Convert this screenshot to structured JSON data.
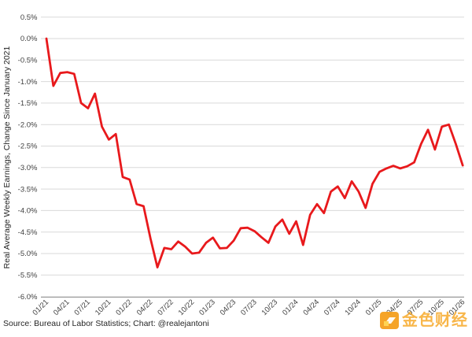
{
  "chart_data": {
    "type": "line",
    "title": "",
    "xlabel": "",
    "ylabel": "Real Average Weekly Earnings, Change Since January 2021",
    "ylim": [
      -6.0,
      0.5
    ],
    "y_tick_step": 0.5,
    "grid": "horizontal",
    "legend_position": "none",
    "y_tick_labels": [
      "0.5%",
      "0.0%",
      "-0.5%",
      "-1.0%",
      "-1.5%",
      "-2.0%",
      "-2.5%",
      "-3.0%",
      "-3.5%",
      "-4.0%",
      "-4.5%",
      "-5.0%",
      "-5.5%",
      "-6.0%"
    ],
    "x_tick_labels": [
      "01/21",
      "04/21",
      "07/21",
      "10/21",
      "01/22",
      "04/22",
      "07/22",
      "10/22",
      "01/23",
      "04/23",
      "07/23",
      "10/23",
      "01/24",
      "04/24",
      "07/24",
      "10/24",
      "01/25",
      "04/25",
      "07/25",
      "10/25",
      "01/26"
    ],
    "x_tick_rotation_deg": -45,
    "series": [
      {
        "name": "Real Average Weekly Earnings, % change since January 2021",
        "color": "#e8191c",
        "x": [
          "01/21",
          "02/21",
          "03/21",
          "04/21",
          "05/21",
          "06/21",
          "07/21",
          "08/21",
          "09/21",
          "10/21",
          "11/21",
          "12/21",
          "01/22",
          "02/22",
          "03/22",
          "04/22",
          "05/22",
          "06/22",
          "07/22",
          "08/22",
          "09/22",
          "10/22",
          "11/22",
          "12/22",
          "01/23",
          "02/23",
          "03/23",
          "04/23",
          "05/23",
          "06/23",
          "07/23",
          "08/23",
          "09/23",
          "10/23",
          "11/23",
          "12/23",
          "01/24",
          "02/24",
          "03/24",
          "04/24",
          "05/24",
          "06/24",
          "07/24",
          "08/24",
          "09/24",
          "10/24",
          "11/24",
          "12/24",
          "01/25",
          "02/25",
          "03/25",
          "04/25",
          "05/25",
          "06/25",
          "07/25",
          "08/25",
          "09/25",
          "10/25",
          "11/25",
          "12/25",
          "01/26"
        ],
        "values": [
          0.0,
          -1.1,
          -0.8,
          -0.78,
          -0.82,
          -1.5,
          -1.62,
          -1.28,
          -2.05,
          -2.35,
          -2.22,
          -3.22,
          -3.28,
          -3.85,
          -3.9,
          -4.65,
          -5.32,
          -4.87,
          -4.9,
          -4.72,
          -4.84,
          -5.0,
          -4.98,
          -4.75,
          -4.63,
          -4.88,
          -4.87,
          -4.7,
          -4.41,
          -4.4,
          -4.48,
          -4.62,
          -4.75,
          -4.37,
          -4.21,
          -4.54,
          -4.25,
          -4.8,
          -4.1,
          -3.85,
          -4.06,
          -3.56,
          -3.44,
          -3.71,
          -3.32,
          -3.56,
          -3.94,
          -3.38,
          -3.1,
          -3.02,
          -2.96,
          -3.02,
          -2.97,
          -2.88,
          -2.45,
          -2.12,
          -2.58,
          -2.05,
          -2.0,
          -2.45,
          -2.95
        ]
      }
    ]
  },
  "source_note": "Source: Bureau of Labor Statistics; Chart: @realejantoni",
  "watermark": {
    "text": "金色财经",
    "color": "#f7a41c"
  },
  "colors": {
    "line": "#e8191c",
    "grid": "#d9d9d9",
    "axis": "#9e9e9e",
    "tick_text": "#404040",
    "label_text": "#262626",
    "background": "#ffffff",
    "watermark_orange": "#f7a41c",
    "watermark_yellow": "#ffd24a"
  }
}
